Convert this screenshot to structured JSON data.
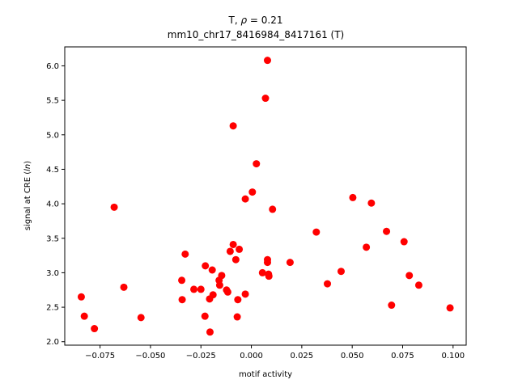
{
  "chart_data": {
    "type": "scatter",
    "title": "T, ρ = 0.21",
    "title_symbol": "ρ",
    "title_prefix": "T, ",
    "title_suffix": " = 0.21",
    "subtitle": "mm10_chr17_8416984_8417161 (T)",
    "xlabel": "motif activity",
    "ylabel_prefix": "signal at CRE (",
    "ylabel_italic": "ln",
    "ylabel_suffix": ")",
    "xlim": [
      -0.0925,
      0.1065
    ],
    "ylim": [
      1.95,
      6.275
    ],
    "xticks": [
      {
        "value": -0.075,
        "label": "−0.075"
      },
      {
        "value": -0.05,
        "label": "−0.050"
      },
      {
        "value": -0.025,
        "label": "−0.025"
      },
      {
        "value": 0.0,
        "label": "0.000"
      },
      {
        "value": 0.025,
        "label": "0.025"
      },
      {
        "value": 0.05,
        "label": "0.050"
      },
      {
        "value": 0.075,
        "label": "0.075"
      },
      {
        "value": 0.1,
        "label": "0.100"
      }
    ],
    "yticks": [
      {
        "value": 2.0,
        "label": "2.0"
      },
      {
        "value": 2.5,
        "label": "2.5"
      },
      {
        "value": 3.0,
        "label": "3.0"
      },
      {
        "value": 3.5,
        "label": "3.5"
      },
      {
        "value": 4.0,
        "label": "4.0"
      },
      {
        "value": 4.5,
        "label": "4.5"
      },
      {
        "value": 5.0,
        "label": "5.0"
      },
      {
        "value": 5.5,
        "label": "5.5"
      },
      {
        "value": 6.0,
        "label": "6.0"
      }
    ],
    "grid": false,
    "marker_color": "#ff0000",
    "points": [
      {
        "x": -0.0843,
        "y": 2.65
      },
      {
        "x": -0.0828,
        "y": 2.37
      },
      {
        "x": -0.0778,
        "y": 2.19
      },
      {
        "x": -0.068,
        "y": 3.95
      },
      {
        "x": -0.0632,
        "y": 2.79
      },
      {
        "x": -0.0547,
        "y": 2.35
      },
      {
        "x": -0.0345,
        "y": 2.89
      },
      {
        "x": -0.0343,
        "y": 2.61
      },
      {
        "x": -0.0328,
        "y": 3.27
      },
      {
        "x": -0.0285,
        "y": 2.76
      },
      {
        "x": -0.025,
        "y": 2.76
      },
      {
        "x": -0.023,
        "y": 2.37
      },
      {
        "x": -0.0228,
        "y": 3.1
      },
      {
        "x": -0.0207,
        "y": 2.62
      },
      {
        "x": -0.0205,
        "y": 2.14
      },
      {
        "x": -0.0194,
        "y": 3.04
      },
      {
        "x": -0.019,
        "y": 2.68
      },
      {
        "x": -0.016,
        "y": 2.89
      },
      {
        "x": -0.0157,
        "y": 2.82
      },
      {
        "x": -0.0147,
        "y": 2.96
      },
      {
        "x": -0.0123,
        "y": 2.75
      },
      {
        "x": -0.0117,
        "y": 2.72
      },
      {
        "x": -0.0105,
        "y": 3.31
      },
      {
        "x": -0.009,
        "y": 3.41
      },
      {
        "x": -0.009,
        "y": 5.13
      },
      {
        "x": -0.0077,
        "y": 3.19
      },
      {
        "x": -0.007,
        "y": 2.36
      },
      {
        "x": -0.0067,
        "y": 2.61
      },
      {
        "x": -0.006,
        "y": 3.34
      },
      {
        "x": -0.003,
        "y": 4.07
      },
      {
        "x": -0.003,
        "y": 2.69
      },
      {
        "x": 0.0005,
        "y": 4.17
      },
      {
        "x": 0.0025,
        "y": 4.58
      },
      {
        "x": 0.0055,
        "y": 3.0
      },
      {
        "x": 0.007,
        "y": 5.53
      },
      {
        "x": 0.008,
        "y": 6.08
      },
      {
        "x": 0.008,
        "y": 3.19
      },
      {
        "x": 0.008,
        "y": 3.15
      },
      {
        "x": 0.0085,
        "y": 2.98
      },
      {
        "x": 0.0087,
        "y": 2.95
      },
      {
        "x": 0.0105,
        "y": 3.92
      },
      {
        "x": 0.0192,
        "y": 3.15
      },
      {
        "x": 0.0322,
        "y": 3.59
      },
      {
        "x": 0.0377,
        "y": 2.84
      },
      {
        "x": 0.0445,
        "y": 3.02
      },
      {
        "x": 0.0503,
        "y": 4.09
      },
      {
        "x": 0.057,
        "y": 3.37
      },
      {
        "x": 0.0595,
        "y": 4.01
      },
      {
        "x": 0.067,
        "y": 3.6
      },
      {
        "x": 0.0695,
        "y": 2.53
      },
      {
        "x": 0.0757,
        "y": 3.45
      },
      {
        "x": 0.0783,
        "y": 2.96
      },
      {
        "x": 0.083,
        "y": 2.82
      },
      {
        "x": 0.0985,
        "y": 2.49
      }
    ]
  }
}
